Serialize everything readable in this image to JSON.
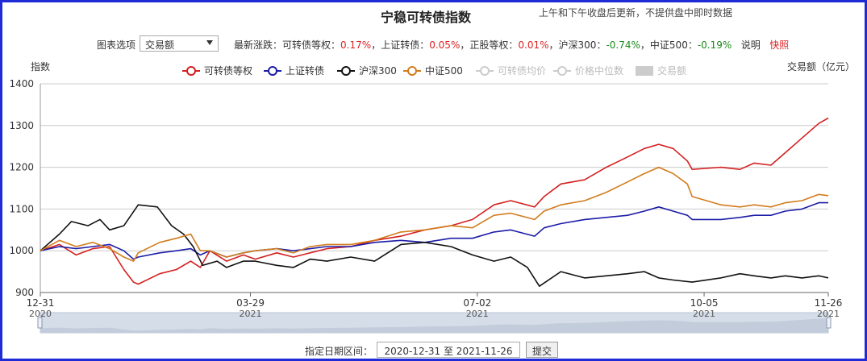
{
  "header": {
    "title": "宁稳可转债指数",
    "subtitle": "上午和下午收盘后更新，不提供盘中即时数据"
  },
  "toolbar": {
    "chart_option_label": "图表选项",
    "chart_option_value": "交易额",
    "stats_prefix": "最新涨跌：",
    "stats": [
      {
        "name": "可转债等权",
        "value": "0.17%",
        "dir": "up"
      },
      {
        "name": "上证转债",
        "value": "0.05%",
        "dir": "up"
      },
      {
        "name": "正股等权",
        "value": "0.01%",
        "dir": "up"
      },
      {
        "name": "沪深300",
        "value": "-0.74%",
        "dir": "down"
      },
      {
        "name": "中证500",
        "value": "-0.19%",
        "dir": "down"
      }
    ],
    "explain_label": "说明",
    "snapshot_label": "快照"
  },
  "bottom": {
    "range_label": "指定日期区间：",
    "range_value": "2020-12-31 至 2021-11-26",
    "submit_label": "提交"
  },
  "colors": {
    "red": "#d42020",
    "blue": "#1c1ca8",
    "black": "#111111",
    "orange": "#d27c1c",
    "disabled": "#cccccc",
    "grid": "#cccccc",
    "frame": "#1f2bd6"
  },
  "chart_data": {
    "type": "line",
    "ylabel": "指数",
    "y2label": "交易额（亿元）",
    "ylim": [
      900,
      1400
    ],
    "yticks": [
      900,
      1000,
      1100,
      1200,
      1300,
      1400
    ],
    "grid": true,
    "legend_position": "top",
    "x_start": "2020-12-31",
    "x_end": "2021-11-26",
    "xticks": [
      {
        "date": "2020-12-31",
        "label": "12-31",
        "year": "2020"
      },
      {
        "date": "2021-03-29",
        "label": "03-29",
        "year": "2021"
      },
      {
        "date": "2021-07-02",
        "label": "07-02",
        "year": "2021"
      },
      {
        "date": "2021-10-05",
        "label": "10-05",
        "year": "2021"
      },
      {
        "date": "2021-11-26",
        "label": "11-26",
        "year": "2021"
      }
    ],
    "legend": [
      {
        "name": "可转债等权",
        "color": "#d42020",
        "active": true
      },
      {
        "name": "上证转债",
        "color": "#1c1ca8",
        "active": true
      },
      {
        "name": "沪深300",
        "color": "#111111",
        "active": true
      },
      {
        "name": "中证500",
        "color": "#d27c1c",
        "active": true
      },
      {
        "name": "可转债均价",
        "color": "#cccccc",
        "active": false
      },
      {
        "name": "价格中位数",
        "color": "#cccccc",
        "active": false
      },
      {
        "name": "交易额",
        "color": "#cccccc",
        "active": false,
        "bar": true
      }
    ],
    "series": [
      {
        "name": "可转债等权",
        "color": "#d42020",
        "points": [
          [
            "2020-12-31",
            1000
          ],
          [
            "2021-01-08",
            1015
          ],
          [
            "2021-01-15",
            990
          ],
          [
            "2021-01-22",
            1005
          ],
          [
            "2021-01-29",
            1010
          ],
          [
            "2021-02-04",
            955
          ],
          [
            "2021-02-08",
            925
          ],
          [
            "2021-02-10",
            920
          ],
          [
            "2021-02-19",
            945
          ],
          [
            "2021-02-26",
            955
          ],
          [
            "2021-03-04",
            975
          ],
          [
            "2021-03-08",
            960
          ],
          [
            "2021-03-12",
            1000
          ],
          [
            "2021-03-19",
            975
          ],
          [
            "2021-03-26",
            990
          ],
          [
            "2021-03-31",
            980
          ],
          [
            "2021-04-09",
            995
          ],
          [
            "2021-04-16",
            985
          ],
          [
            "2021-04-23",
            995
          ],
          [
            "2021-04-30",
            1005
          ],
          [
            "2021-05-10",
            1010
          ],
          [
            "2021-05-20",
            1025
          ],
          [
            "2021-05-31",
            1035
          ],
          [
            "2021-06-10",
            1050
          ],
          [
            "2021-06-21",
            1060
          ],
          [
            "2021-06-30",
            1075
          ],
          [
            "2021-07-09",
            1110
          ],
          [
            "2021-07-16",
            1120
          ],
          [
            "2021-07-26",
            1105
          ],
          [
            "2021-07-30",
            1130
          ],
          [
            "2021-08-06",
            1160
          ],
          [
            "2021-08-16",
            1170
          ],
          [
            "2021-08-25",
            1200
          ],
          [
            "2021-09-03",
            1225
          ],
          [
            "2021-09-10",
            1245
          ],
          [
            "2021-09-16",
            1255
          ],
          [
            "2021-09-22",
            1245
          ],
          [
            "2021-09-28",
            1215
          ],
          [
            "2021-09-30",
            1195
          ],
          [
            "2021-10-12",
            1200
          ],
          [
            "2021-10-20",
            1195
          ],
          [
            "2021-10-26",
            1210
          ],
          [
            "2021-11-02",
            1205
          ],
          [
            "2021-11-08",
            1235
          ],
          [
            "2021-11-15",
            1270
          ],
          [
            "2021-11-22",
            1305
          ],
          [
            "2021-11-26",
            1318
          ]
        ]
      },
      {
        "name": "上证转债",
        "color": "#1c1ca8",
        "points": [
          [
            "2020-12-31",
            1000
          ],
          [
            "2021-01-08",
            1010
          ],
          [
            "2021-01-15",
            1005
          ],
          [
            "2021-01-22",
            1010
          ],
          [
            "2021-01-29",
            1015
          ],
          [
            "2021-02-04",
            1000
          ],
          [
            "2021-02-08",
            980
          ],
          [
            "2021-02-10",
            985
          ],
          [
            "2021-02-19",
            995
          ],
          [
            "2021-02-26",
            1000
          ],
          [
            "2021-03-04",
            1005
          ],
          [
            "2021-03-08",
            990
          ],
          [
            "2021-03-12",
            1000
          ],
          [
            "2021-03-19",
            985
          ],
          [
            "2021-03-26",
            995
          ],
          [
            "2021-03-31",
            1000
          ],
          [
            "2021-04-09",
            1005
          ],
          [
            "2021-04-16",
            1000
          ],
          [
            "2021-04-23",
            1005
          ],
          [
            "2021-04-30",
            1010
          ],
          [
            "2021-05-10",
            1010
          ],
          [
            "2021-05-20",
            1020
          ],
          [
            "2021-05-31",
            1025
          ],
          [
            "2021-06-10",
            1020
          ],
          [
            "2021-06-21",
            1030
          ],
          [
            "2021-06-30",
            1030
          ],
          [
            "2021-07-09",
            1045
          ],
          [
            "2021-07-16",
            1050
          ],
          [
            "2021-07-26",
            1035
          ],
          [
            "2021-07-30",
            1055
          ],
          [
            "2021-08-06",
            1065
          ],
          [
            "2021-08-16",
            1075
          ],
          [
            "2021-08-25",
            1080
          ],
          [
            "2021-09-03",
            1085
          ],
          [
            "2021-09-10",
            1095
          ],
          [
            "2021-09-16",
            1105
          ],
          [
            "2021-09-22",
            1095
          ],
          [
            "2021-09-28",
            1085
          ],
          [
            "2021-09-30",
            1075
          ],
          [
            "2021-10-12",
            1075
          ],
          [
            "2021-10-20",
            1080
          ],
          [
            "2021-10-26",
            1085
          ],
          [
            "2021-11-02",
            1085
          ],
          [
            "2021-11-08",
            1095
          ],
          [
            "2021-11-15",
            1100
          ],
          [
            "2021-11-22",
            1115
          ],
          [
            "2021-11-26",
            1115
          ]
        ]
      },
      {
        "name": "沪深300",
        "color": "#111111",
        "points": [
          [
            "2020-12-31",
            1000
          ],
          [
            "2021-01-08",
            1040
          ],
          [
            "2021-01-13",
            1070
          ],
          [
            "2021-01-20",
            1060
          ],
          [
            "2021-01-25",
            1075
          ],
          [
            "2021-01-29",
            1050
          ],
          [
            "2021-02-04",
            1060
          ],
          [
            "2021-02-10",
            1110
          ],
          [
            "2021-02-18",
            1105
          ],
          [
            "2021-02-24",
            1060
          ],
          [
            "2021-03-01",
            1040
          ],
          [
            "2021-03-05",
            1010
          ],
          [
            "2021-03-09",
            965
          ],
          [
            "2021-03-15",
            975
          ],
          [
            "2021-03-19",
            960
          ],
          [
            "2021-03-26",
            975
          ],
          [
            "2021-03-31",
            975
          ],
          [
            "2021-04-09",
            965
          ],
          [
            "2021-04-16",
            960
          ],
          [
            "2021-04-23",
            980
          ],
          [
            "2021-04-30",
            975
          ],
          [
            "2021-05-10",
            985
          ],
          [
            "2021-05-20",
            975
          ],
          [
            "2021-05-31",
            1015
          ],
          [
            "2021-06-10",
            1020
          ],
          [
            "2021-06-21",
            1010
          ],
          [
            "2021-06-30",
            990
          ],
          [
            "2021-07-09",
            975
          ],
          [
            "2021-07-16",
            985
          ],
          [
            "2021-07-23",
            960
          ],
          [
            "2021-07-28",
            915
          ],
          [
            "2021-08-06",
            950
          ],
          [
            "2021-08-16",
            935
          ],
          [
            "2021-08-25",
            940
          ],
          [
            "2021-09-03",
            945
          ],
          [
            "2021-09-10",
            950
          ],
          [
            "2021-09-16",
            935
          ],
          [
            "2021-09-22",
            930
          ],
          [
            "2021-09-30",
            925
          ],
          [
            "2021-10-12",
            935
          ],
          [
            "2021-10-20",
            945
          ],
          [
            "2021-10-26",
            940
          ],
          [
            "2021-11-02",
            935
          ],
          [
            "2021-11-08",
            940
          ],
          [
            "2021-11-15",
            935
          ],
          [
            "2021-11-22",
            940
          ],
          [
            "2021-11-26",
            935
          ]
        ]
      },
      {
        "name": "中证500",
        "color": "#d27c1c",
        "points": [
          [
            "2020-12-31",
            1000
          ],
          [
            "2021-01-08",
            1025
          ],
          [
            "2021-01-15",
            1010
          ],
          [
            "2021-01-22",
            1020
          ],
          [
            "2021-01-29",
            1005
          ],
          [
            "2021-02-04",
            985
          ],
          [
            "2021-02-08",
            975
          ],
          [
            "2021-02-10",
            995
          ],
          [
            "2021-02-19",
            1020
          ],
          [
            "2021-02-26",
            1030
          ],
          [
            "2021-03-04",
            1040
          ],
          [
            "2021-03-08",
            1000
          ],
          [
            "2021-03-12",
            1000
          ],
          [
            "2021-03-19",
            985
          ],
          [
            "2021-03-26",
            995
          ],
          [
            "2021-03-31",
            1000
          ],
          [
            "2021-04-09",
            1005
          ],
          [
            "2021-04-16",
            995
          ],
          [
            "2021-04-23",
            1010
          ],
          [
            "2021-04-30",
            1015
          ],
          [
            "2021-05-10",
            1015
          ],
          [
            "2021-05-20",
            1025
          ],
          [
            "2021-05-31",
            1045
          ],
          [
            "2021-06-10",
            1050
          ],
          [
            "2021-06-21",
            1060
          ],
          [
            "2021-06-30",
            1055
          ],
          [
            "2021-07-09",
            1085
          ],
          [
            "2021-07-16",
            1090
          ],
          [
            "2021-07-26",
            1075
          ],
          [
            "2021-07-30",
            1095
          ],
          [
            "2021-08-06",
            1110
          ],
          [
            "2021-08-16",
            1120
          ],
          [
            "2021-08-25",
            1140
          ],
          [
            "2021-09-03",
            1165
          ],
          [
            "2021-09-10",
            1185
          ],
          [
            "2021-09-16",
            1200
          ],
          [
            "2021-09-22",
            1185
          ],
          [
            "2021-09-28",
            1160
          ],
          [
            "2021-09-30",
            1130
          ],
          [
            "2021-10-12",
            1110
          ],
          [
            "2021-10-20",
            1105
          ],
          [
            "2021-10-26",
            1110
          ],
          [
            "2021-11-02",
            1105
          ],
          [
            "2021-11-08",
            1115
          ],
          [
            "2021-11-15",
            1120
          ],
          [
            "2021-11-22",
            1135
          ],
          [
            "2021-11-26",
            1132
          ]
        ]
      }
    ]
  }
}
